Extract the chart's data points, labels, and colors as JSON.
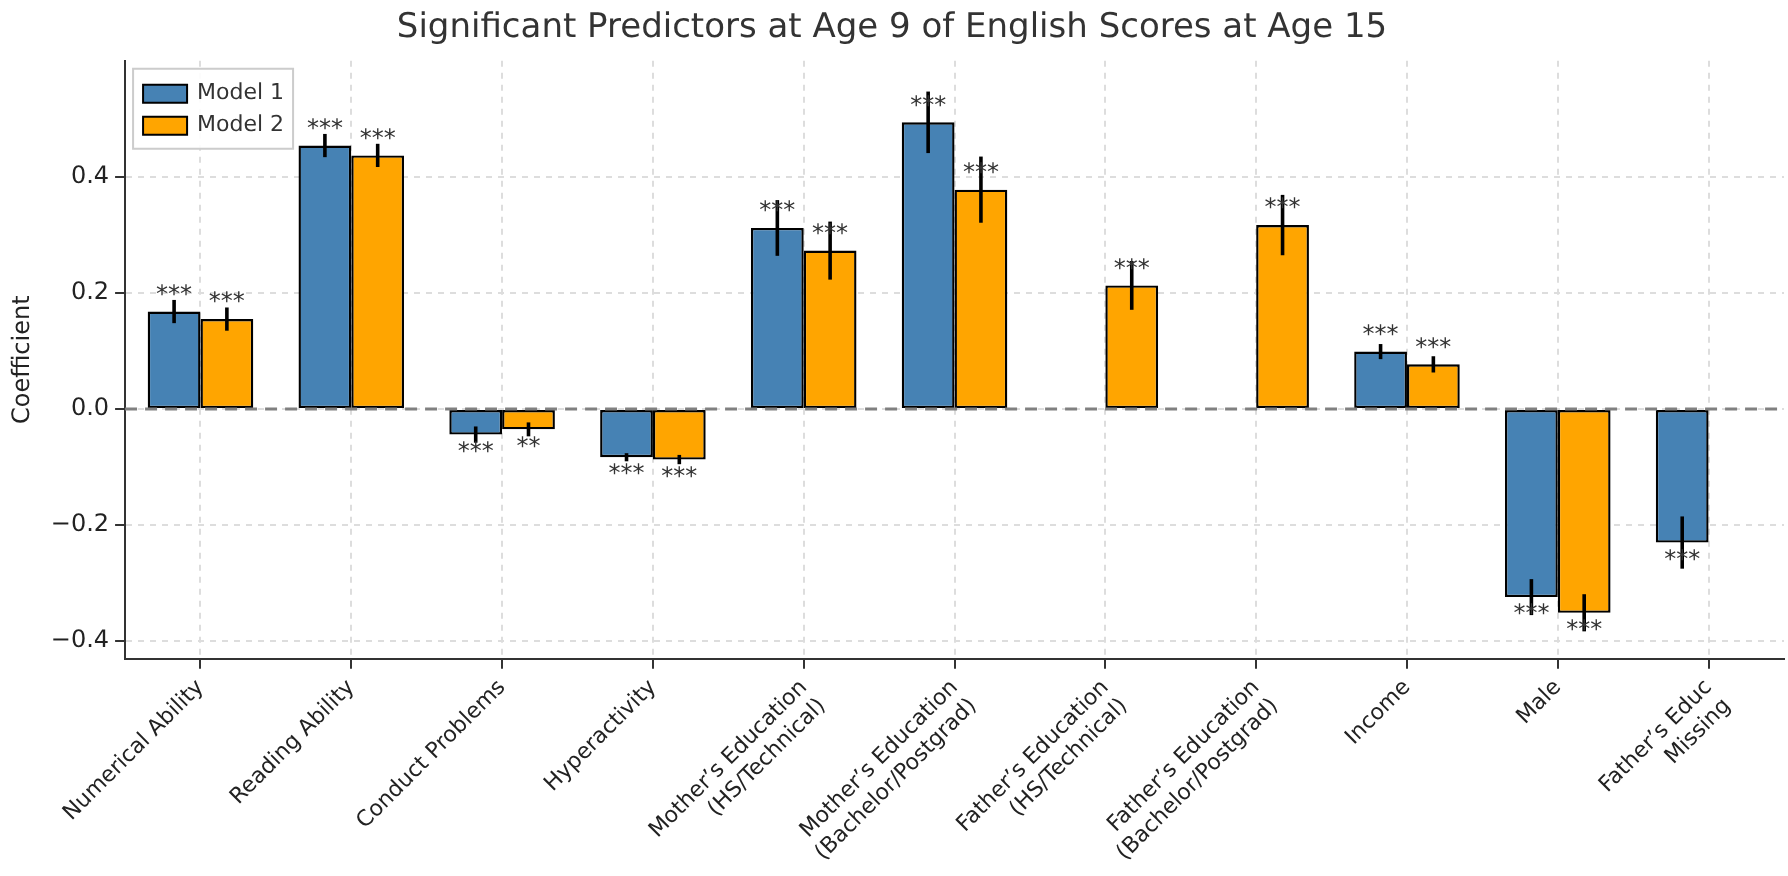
{
  "chart_data": {
    "type": "bar",
    "title": "Significant Predictors at Age 9 of English Scores at Age 15",
    "ylabel": "Coefficient",
    "categories": [
      "Numerical Ability",
      "Reading Ability",
      "Conduct Problems",
      "Hyperactivity",
      "Mother’s Education\n(HS/Technical)",
      "Mother’s Education\n(Bachelor/Postgrad)",
      "Father’s Education\n(HS/Technical)",
      "Father’s Education\n(Bachelor/Postgrad)",
      "Income",
      "Male",
      "Father’s Educ\nMissing"
    ],
    "series": [
      {
        "name": "Model 1",
        "color": "#4682b4",
        "values": [
          0.168,
          0.454,
          -0.044,
          -0.083,
          0.312,
          0.494,
          null,
          null,
          0.099,
          -0.324,
          -0.23
        ],
        "errors": [
          0.02,
          0.02,
          0.014,
          0.007,
          0.048,
          0.053,
          null,
          null,
          0.013,
          0.031,
          0.045
        ],
        "value_labels": [
          "***",
          "***",
          "***",
          "***",
          "***",
          "***",
          null,
          null,
          "***",
          "***",
          "***"
        ]
      },
      {
        "name": "Model 2",
        "color": "#ffa500",
        "values": [
          0.155,
          0.437,
          -0.035,
          -0.087,
          0.273,
          0.378,
          0.213,
          0.317,
          0.077,
          -0.351,
          null
        ],
        "errors": [
          0.02,
          0.02,
          0.012,
          0.008,
          0.05,
          0.057,
          0.042,
          0.052,
          0.014,
          0.032,
          null
        ],
        "value_labels": [
          "***",
          "***",
          "**",
          "***",
          "***",
          "***",
          "***",
          "***",
          "***",
          "***",
          null
        ]
      }
    ],
    "ylim": [
      -0.43,
      0.6
    ],
    "yticks": [
      {
        "value": -0.4,
        "label": "−0.4"
      },
      {
        "value": -0.2,
        "label": "−0.2"
      },
      {
        "value": 0,
        "label": "0.0"
      },
      {
        "value": 0.2,
        "label": "0.2"
      },
      {
        "value": 0.4,
        "label": "0.4"
      }
    ],
    "ref_lines": [
      {
        "axis": "y",
        "value": 0,
        "color": "#808080",
        "line_style": "dashed"
      }
    ],
    "grid": true,
    "legend": "top left"
  }
}
